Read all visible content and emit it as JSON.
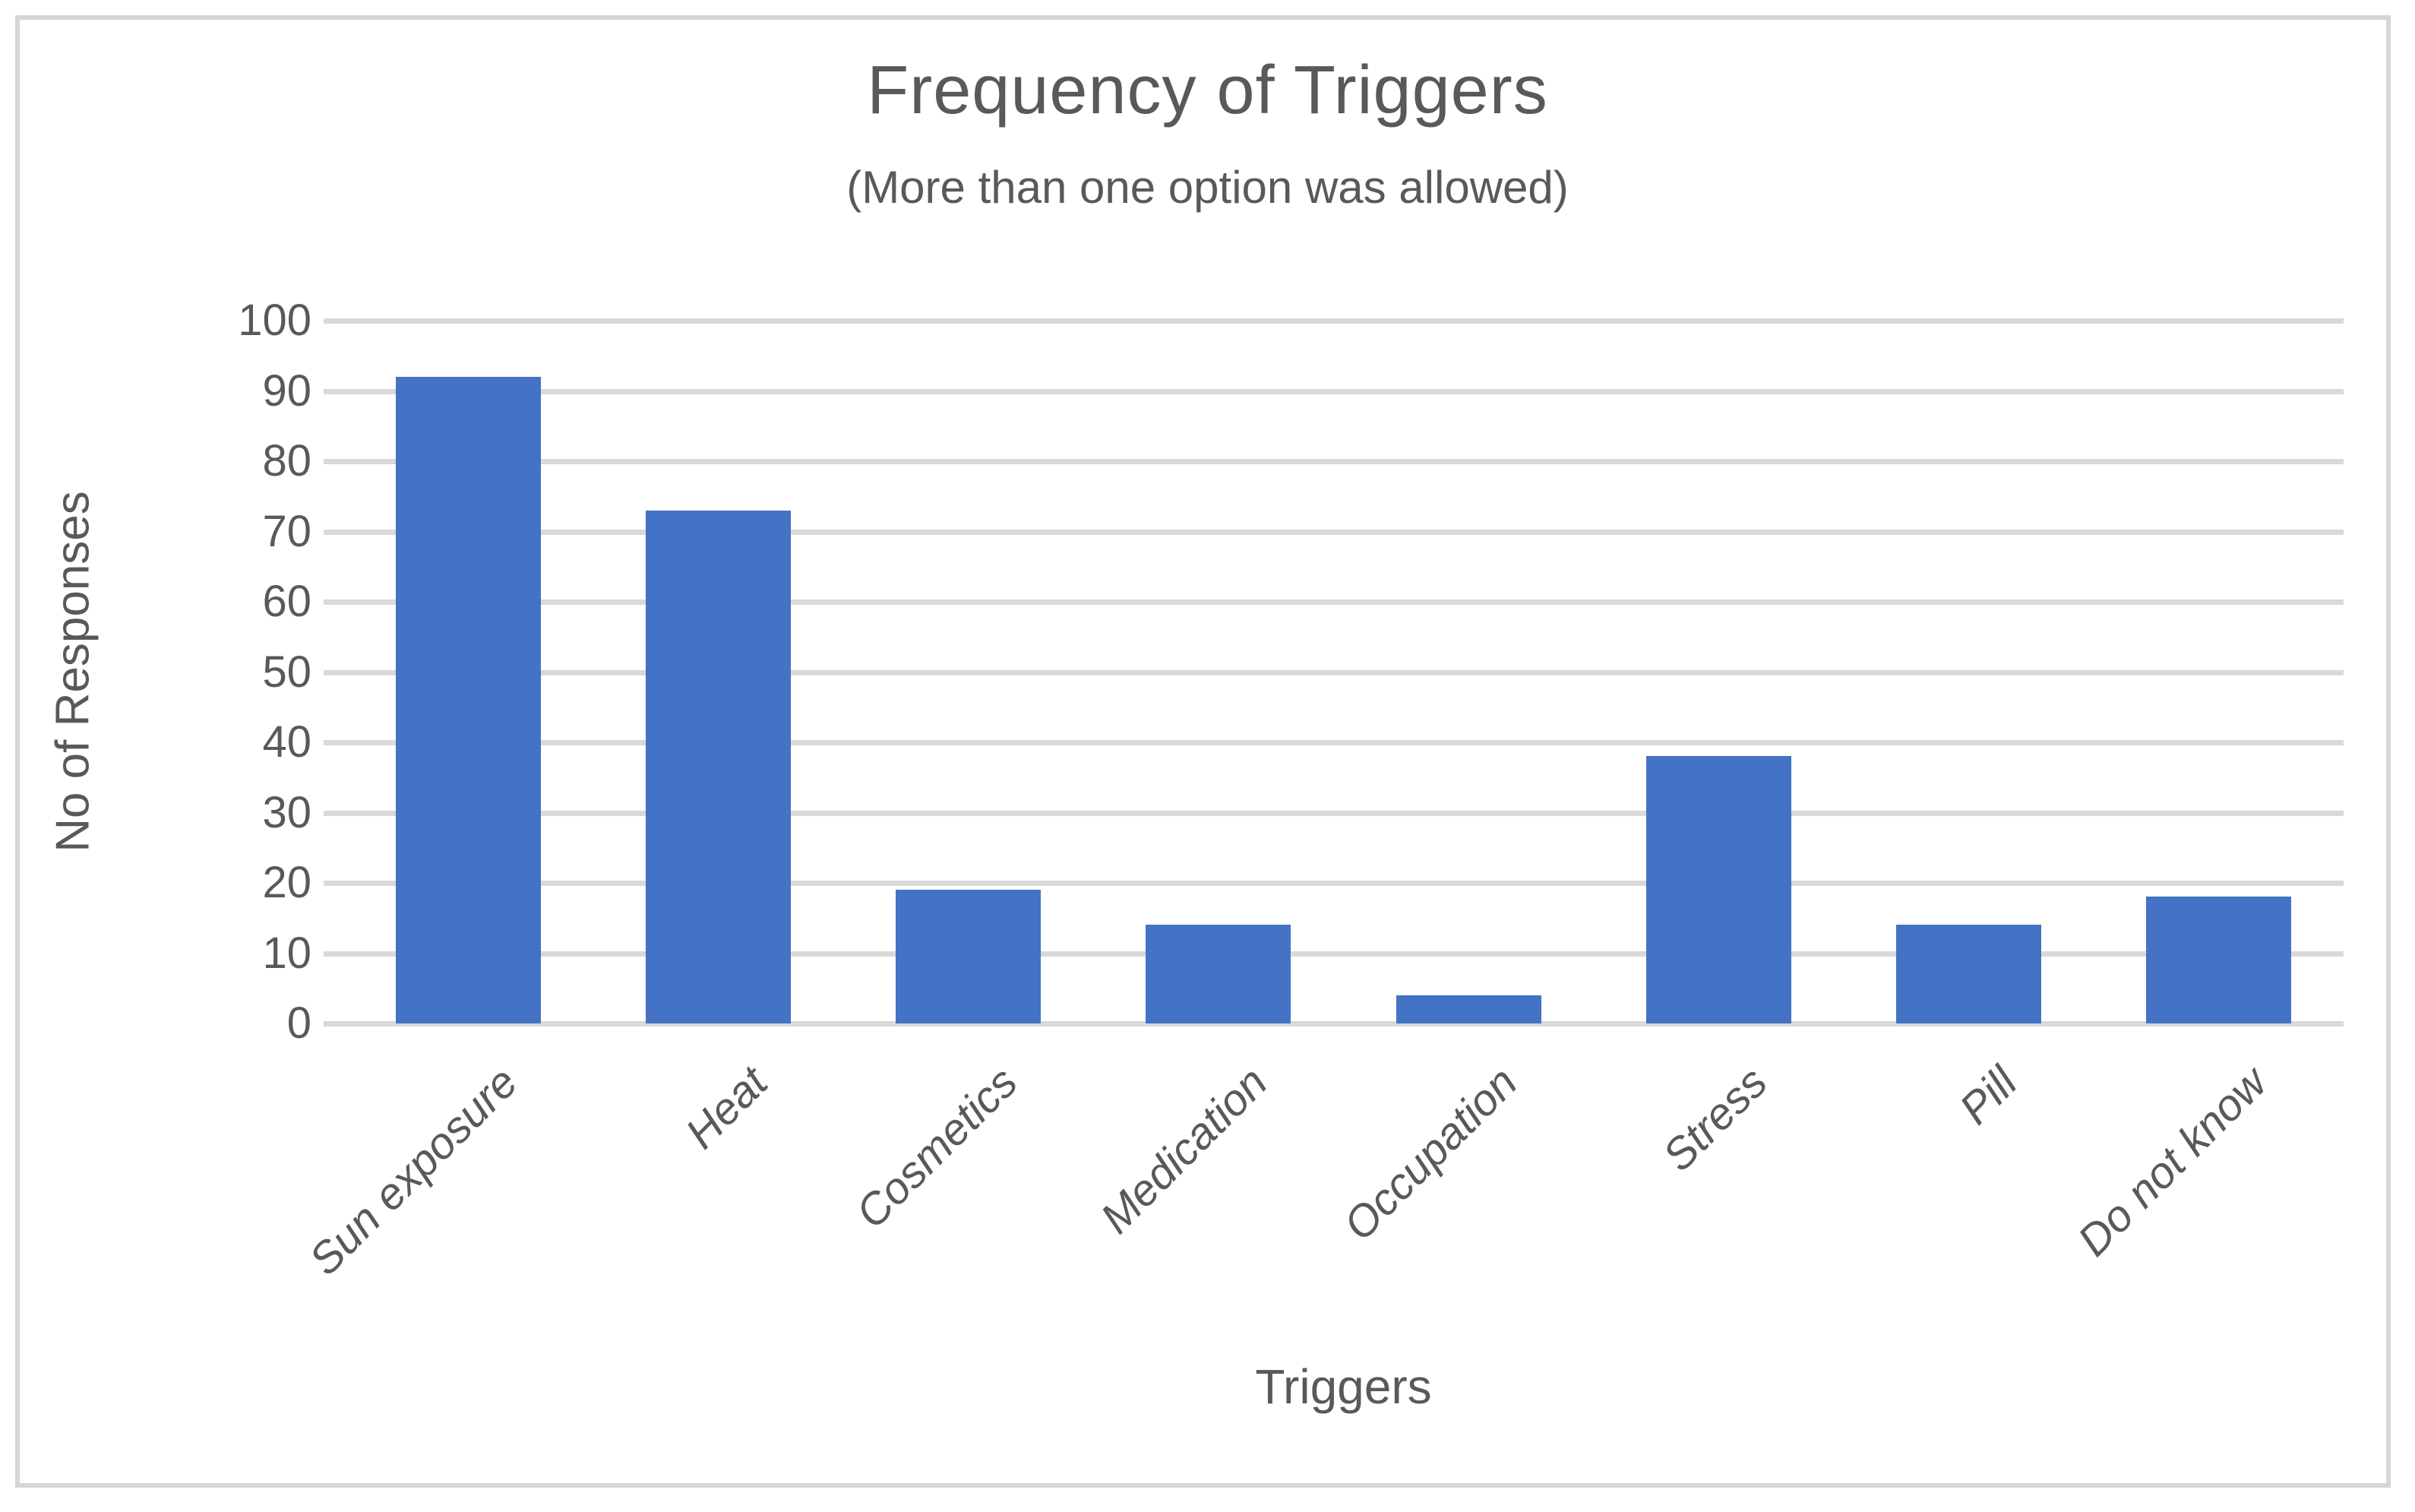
{
  "figure": {
    "background": "#ffffff",
    "border_color": "#d6d6d6"
  },
  "chart_data": {
    "type": "bar",
    "title": "Frequency of Triggers",
    "subtitle": "(More than one option was allowed)",
    "xlabel": "Triggers",
    "ylabel": "No of Responses",
    "categories": [
      "Sun exposure",
      "Heat",
      "Cosmetics",
      "Medication",
      "Occupation",
      "Stress",
      "Pill",
      "Do not know"
    ],
    "values": [
      92,
      73,
      19,
      14,
      4,
      38,
      14,
      18
    ],
    "ylim": [
      0,
      100
    ],
    "y_ticks": [
      0,
      10,
      20,
      30,
      40,
      50,
      60,
      70,
      80,
      90,
      100
    ],
    "grid": true,
    "legend": "none",
    "bar_color": "#4472c4",
    "gridline_color": "#d9d9d9",
    "text_color": "#595959"
  }
}
